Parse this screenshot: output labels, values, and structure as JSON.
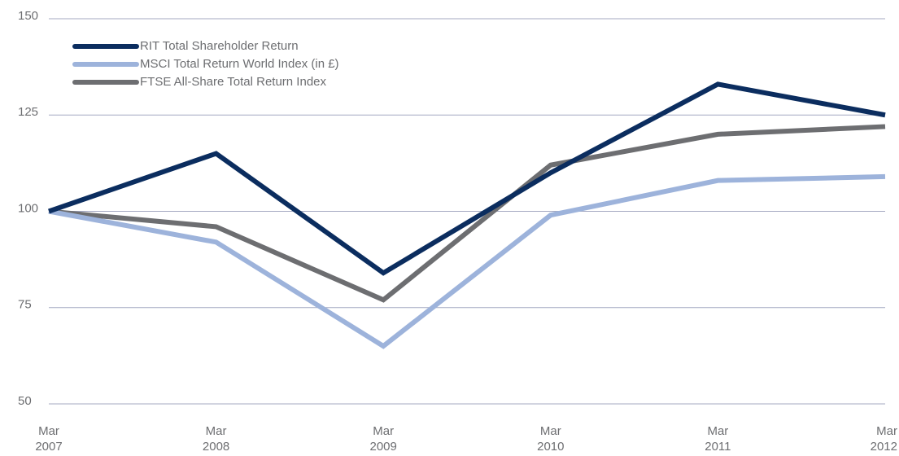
{
  "chart_data": {
    "type": "line",
    "categories": [
      "Mar 2007",
      "Mar 2008",
      "Mar 2009",
      "Mar 2010",
      "Mar 2011",
      "Mar 2012"
    ],
    "series": [
      {
        "name": "RIT Total Shareholder Return",
        "color": "#0b2d5f",
        "values": [
          100,
          115,
          84,
          110,
          133,
          125
        ]
      },
      {
        "name": "MSCI Total Return World Index (in £)",
        "color": "#9db3db",
        "values": [
          100,
          92,
          65,
          99,
          108,
          109
        ]
      },
      {
        "name": "FTSE All-Share Total Return Index",
        "color": "#6d6e71",
        "values": [
          100,
          96,
          77,
          112,
          120,
          122
        ]
      }
    ],
    "ylim": [
      50,
      150
    ],
    "yticks": [
      50,
      75,
      100,
      125,
      150
    ],
    "grid": true,
    "legend": "top-left"
  }
}
